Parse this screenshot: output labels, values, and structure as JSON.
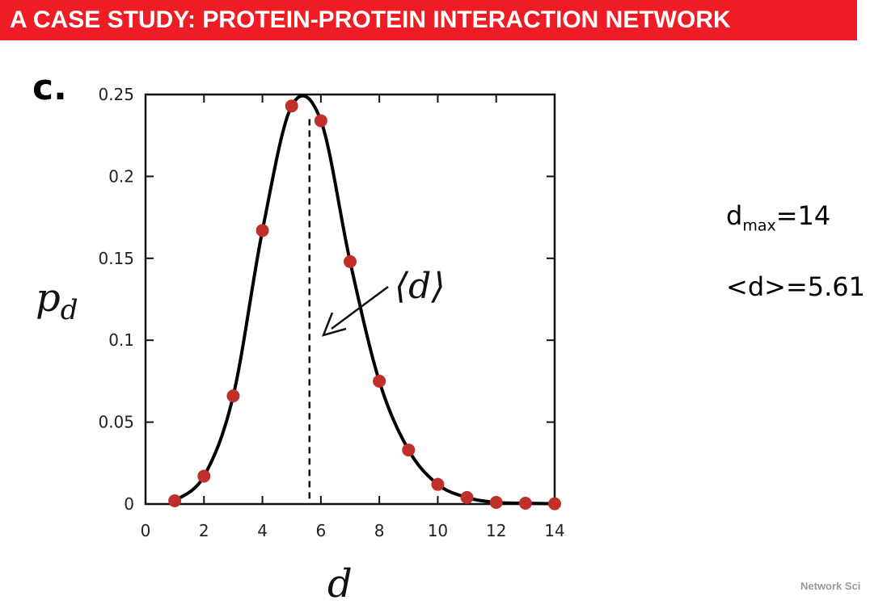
{
  "slide": {
    "title": "A CASE STUDY: PROTEIN-PROTEIN INTERACTION NETWORK",
    "footer": "Network Sci"
  },
  "annotations": {
    "dmax_base": "d",
    "dmax_sub": "max",
    "dmax_value": "=14",
    "avg_d": "<d>=5.61"
  },
  "chart_data": {
    "type": "line",
    "panel_label": "c.",
    "xlabel": "d",
    "ylabel_base": "p",
    "ylabel_sub": "d",
    "xlim": [
      0,
      14
    ],
    "ylim": [
      0,
      0.25
    ],
    "x_ticks": [
      0,
      2,
      4,
      6,
      8,
      10,
      12,
      14
    ],
    "y_ticks": [
      0,
      0.05,
      0.1,
      0.15,
      0.2,
      0.25
    ],
    "y_tick_labels": [
      "0",
      "0.05",
      "0.1",
      "0.15",
      "0.2",
      "0.25"
    ],
    "series": [
      {
        "x": [
          1,
          2,
          3,
          4,
          5,
          6,
          7,
          8,
          9,
          10,
          11,
          12,
          13,
          14
        ],
        "y": [
          0.002,
          0.017,
          0.066,
          0.167,
          0.243,
          0.234,
          0.148,
          0.075,
          0.033,
          0.012,
          0.004,
          0.001,
          0.0005,
          0.0002
        ],
        "marker_color": "#c0302a",
        "line_color": "#000000"
      }
    ],
    "mean_line": {
      "x": 5.61,
      "style": "dashed"
    },
    "mean_label": "⟨d⟩",
    "grid": false
  }
}
